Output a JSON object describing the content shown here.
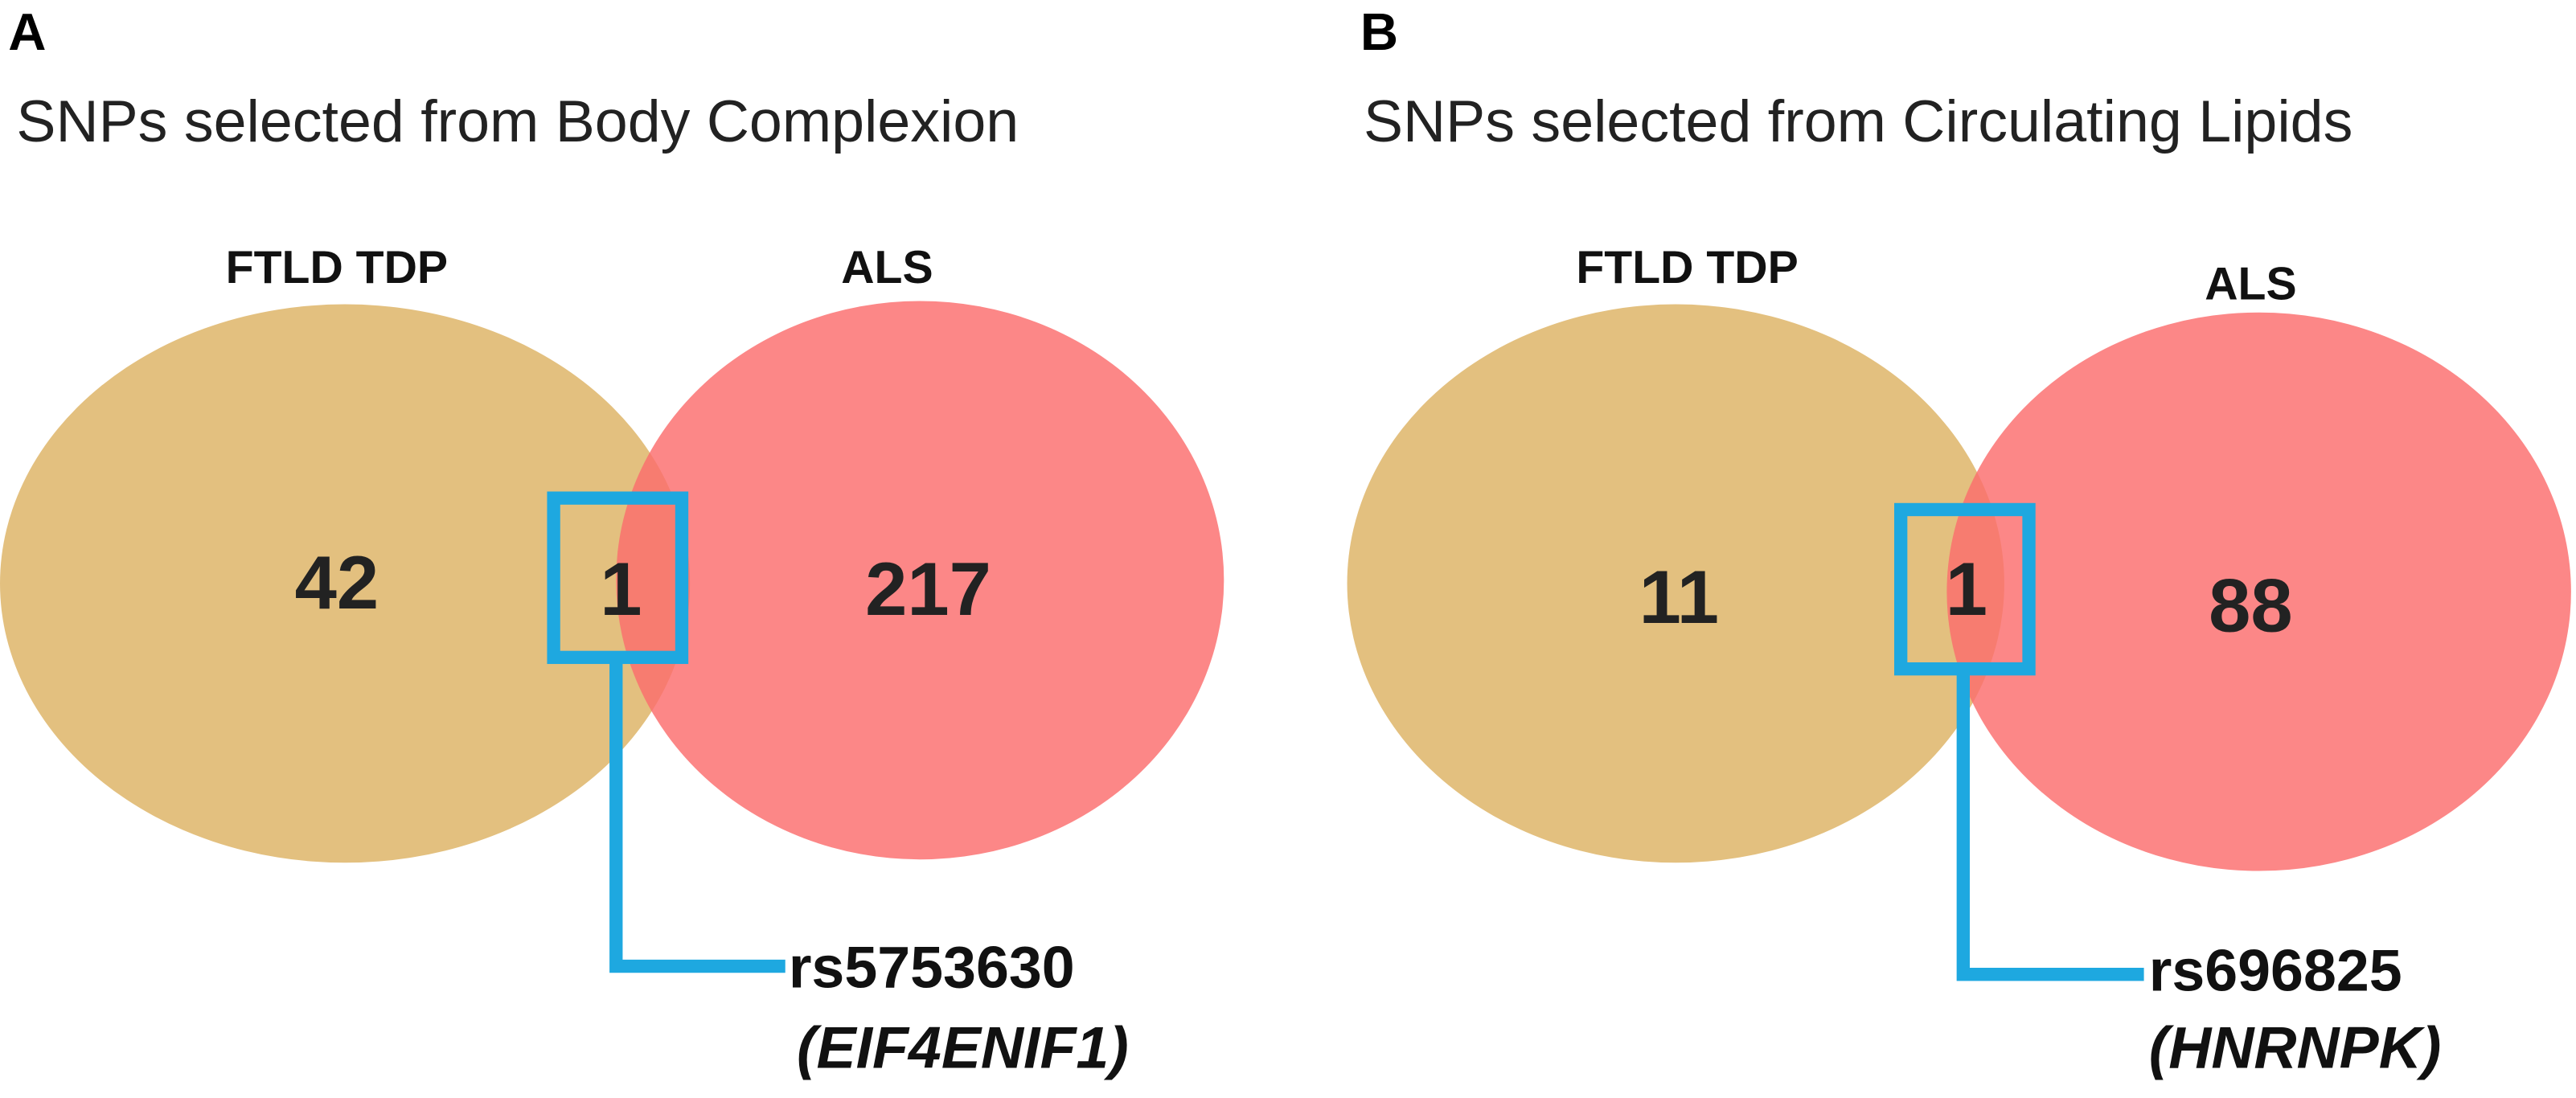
{
  "panels": [
    {
      "label": "A",
      "title": "SNPs selected from Body Complexion",
      "sets": [
        {
          "label": "FTLD TDP",
          "count": 42
        },
        {
          "label": "ALS",
          "count": 217
        }
      ],
      "intersection": 1,
      "snp": "rs5753630",
      "gene": "(EIF4ENIF1)"
    },
    {
      "label": "B",
      "title": "SNPs selected from Circulating Lipids",
      "sets": [
        {
          "label": "FTLD TDP",
          "count": 11
        },
        {
          "label": "ALS",
          "count": 88
        }
      ],
      "intersection": 1,
      "snp": "rs696825",
      "gene": "(HNRNPK)"
    }
  ]
}
